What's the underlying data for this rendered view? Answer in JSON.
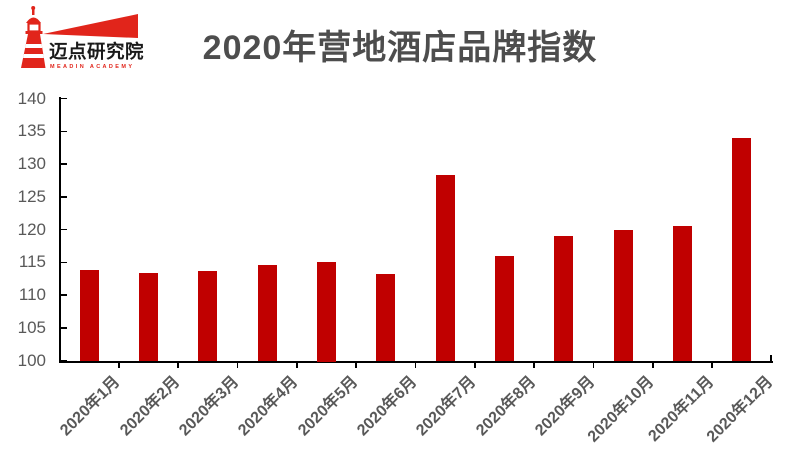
{
  "logo": {
    "name": "迈点研究院",
    "subtitle": "MEADIN ACADEMY",
    "brand_red": "#e1251b"
  },
  "title": "2020年营地酒店品牌指数",
  "chart_data": {
    "type": "bar",
    "title": "2020年营地酒店品牌指数",
    "categories": [
      "2020年1月",
      "2020年2月",
      "2020年3月",
      "2020年4月",
      "2020年5月",
      "2020年6月",
      "2020年7月",
      "2020年8月",
      "2020年9月",
      "2020年10月",
      "2020年11月",
      "2020年12月"
    ],
    "values": [
      113.8,
      113.3,
      113.7,
      114.6,
      115.0,
      113.2,
      128.3,
      116.0,
      119.0,
      119.9,
      120.5,
      134.0
    ],
    "yticks": [
      100,
      105,
      110,
      115,
      120,
      125,
      130,
      135,
      140
    ],
    "ylim": [
      100,
      140
    ],
    "ytick_step": 5,
    "xlabel": "",
    "ylabel": "",
    "grid": false,
    "legend": null,
    "bar_color": "#c00000",
    "axis_color": "#000000",
    "tick_label_color": "#595959",
    "title_color": "#4d4d4d"
  }
}
